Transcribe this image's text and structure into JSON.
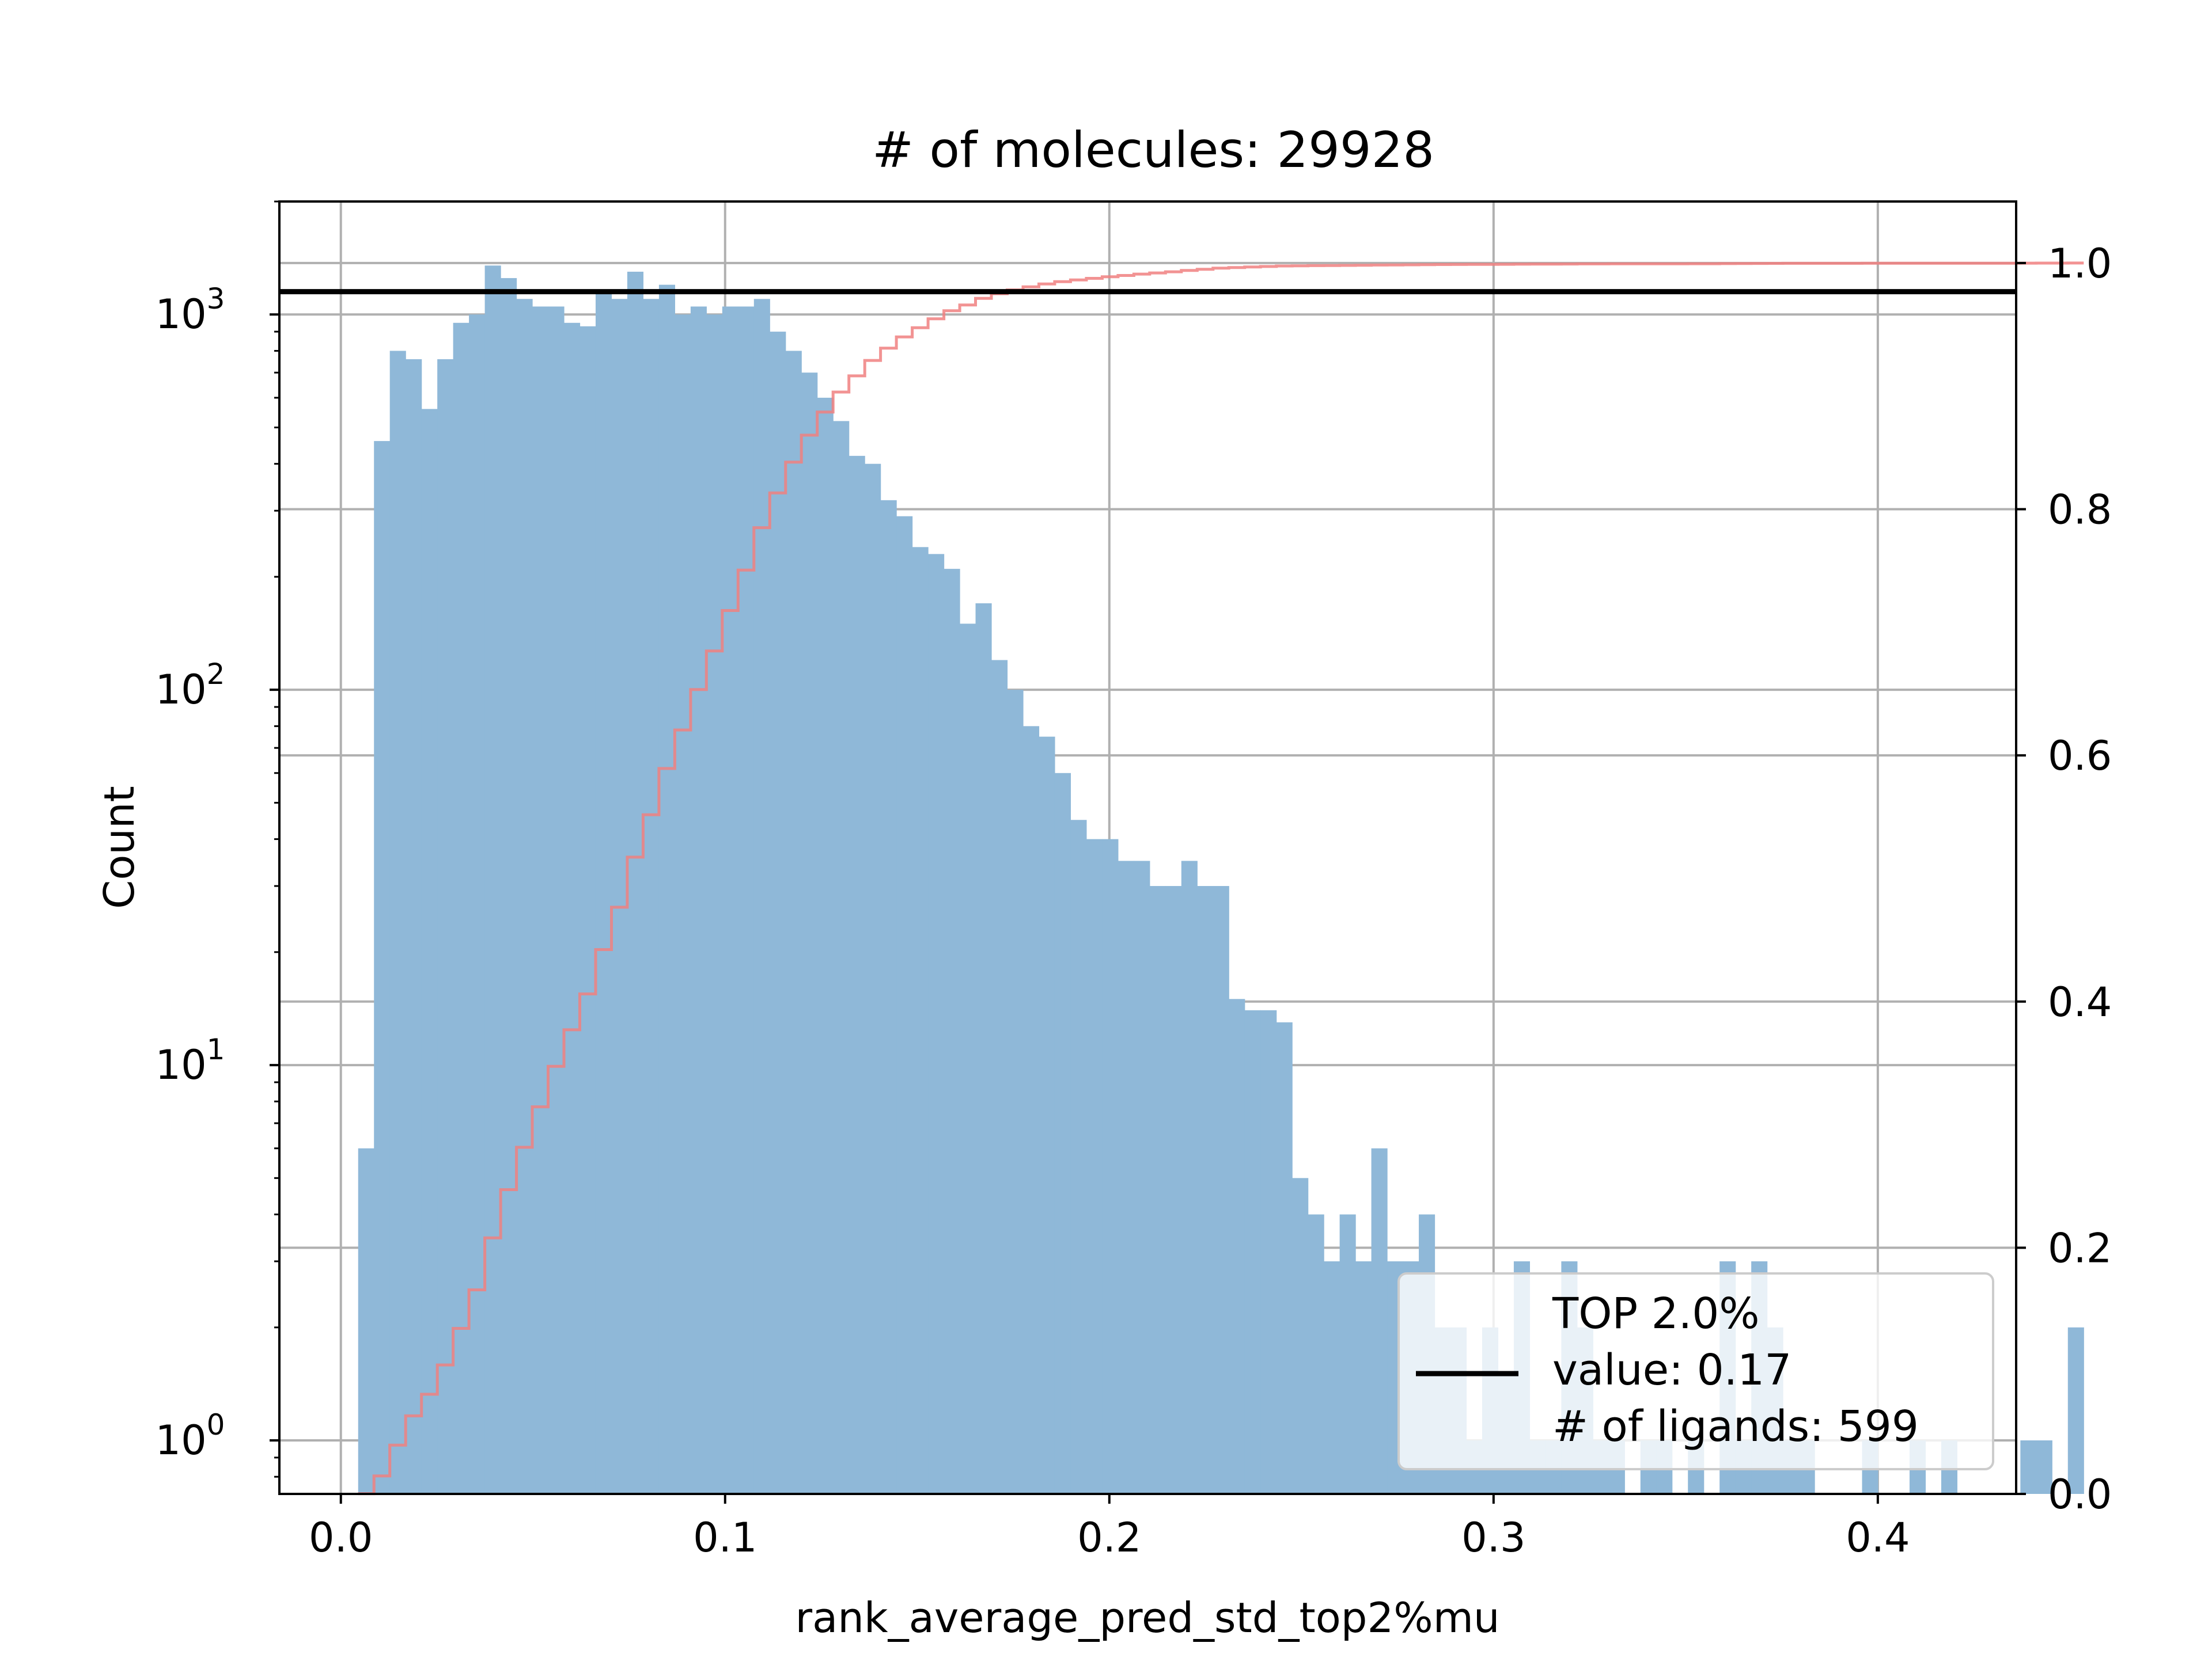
{
  "chart_data": {
    "type": "bar",
    "title": "# of molecules: 29928",
    "xlabel": "rank_average_pred_std_top2%mu",
    "ylabel": "Count",
    "x_range": [
      -0.016,
      0.436
    ],
    "y_scale": "log",
    "y_range": [
      0.72,
      2000
    ],
    "y2_range": [
      0.0,
      1.05
    ],
    "grid": true,
    "x_ticks": [
      "0.0",
      "0.1",
      "0.2",
      "0.3",
      "0.4"
    ],
    "x_tick_values": [
      0.0,
      0.1,
      0.2,
      0.3,
      0.4
    ],
    "y_ticks": [
      {
        "base": "10",
        "exp": "0",
        "value": 1
      },
      {
        "base": "10",
        "exp": "1",
        "value": 10
      },
      {
        "base": "10",
        "exp": "2",
        "value": 100
      },
      {
        "base": "10",
        "exp": "3",
        "value": 1000
      }
    ],
    "y2_ticks": [
      "0.0",
      "0.2",
      "0.4",
      "0.6",
      "0.8",
      "1.0"
    ],
    "y2_tick_values": [
      0.0,
      0.2,
      0.4,
      0.6,
      0.8,
      1.0
    ],
    "bin_start": 0.0045,
    "bin_width": 0.00412,
    "counts": [
      6,
      460,
      800,
      760,
      560,
      760,
      950,
      1000,
      1350,
      1250,
      1100,
      1050,
      1050,
      950,
      930,
      1150,
      1100,
      1300,
      1100,
      1200,
      1000,
      1050,
      1000,
      1050,
      1050,
      1100,
      900,
      800,
      700,
      600,
      520,
      420,
      400,
      320,
      290,
      240,
      230,
      210,
      150,
      170,
      120,
      100,
      80,
      75,
      60,
      45,
      40,
      40,
      35,
      35,
      30,
      30,
      35,
      30,
      30,
      15,
      14,
      14,
      13,
      5,
      4,
      3,
      4,
      3,
      6,
      3,
      3,
      4,
      2,
      2,
      1,
      2,
      1.5,
      3,
      1,
      1,
      3,
      2,
      1,
      1,
      0,
      1,
      1,
      0,
      1,
      0,
      3,
      1,
      3,
      2,
      1,
      1,
      0,
      0,
      0,
      1,
      0,
      0,
      1,
      0,
      1,
      0,
      0,
      0,
      0,
      1,
      1,
      0,
      2
    ],
    "bar_color": "#8fb8d8",
    "cdf_color": "#f08080",
    "threshold": {
      "value": 0.17,
      "y_level": 1150,
      "color": "#000000"
    },
    "legend": {
      "position": "lower-right",
      "lines": [
        "TOP 2.0%",
        "value: 0.17",
        "# of ligands: 599"
      ]
    }
  }
}
